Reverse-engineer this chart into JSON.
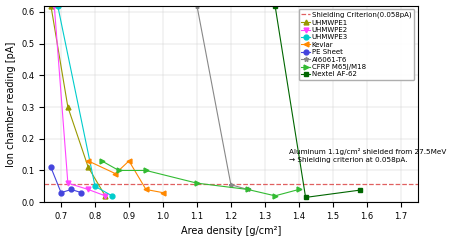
{
  "xlabel": "Area density [g/cm²]",
  "ylabel": "Ion chamber reading [pA]",
  "xlim": [
    0.65,
    1.75
  ],
  "ylim": [
    0.0,
    0.62
  ],
  "xticks": [
    0.7,
    0.8,
    0.9,
    1.0,
    1.1,
    1.2,
    1.3,
    1.4,
    1.5,
    1.6,
    1.7
  ],
  "yticks": [
    0.0,
    0.1,
    0.2,
    0.3,
    0.4,
    0.5,
    0.6
  ],
  "shielding_criterion": 0.058,
  "annotation_text": "Aluminum 1.1g/cm² shielded from 27.5MeV\n→ Shielding criterion at 0.058pA.",
  "series": [
    {
      "name": "Shielding Criterion(0.058pA)",
      "color": "#e06060",
      "linestyle": "--",
      "marker": null,
      "x": [
        0.65,
        1.75
      ],
      "y": [
        0.058,
        0.058
      ]
    },
    {
      "name": "UHMWPE1",
      "color": "#999900",
      "linestyle": "-",
      "marker": "^",
      "x": [
        0.67,
        0.72,
        0.78,
        0.83
      ],
      "y": [
        0.62,
        0.3,
        0.11,
        0.02
      ]
    },
    {
      "name": "UHMWPE2",
      "color": "#ff44ff",
      "linestyle": "-",
      "marker": "v",
      "x": [
        0.68,
        0.72,
        0.78,
        0.83
      ],
      "y": [
        0.62,
        0.06,
        0.04,
        0.02
      ]
    },
    {
      "name": "UHMWPE3",
      "color": "#00cccc",
      "linestyle": "-",
      "marker": "o",
      "x": [
        0.69,
        0.8,
        0.85
      ],
      "y": [
        0.62,
        0.05,
        0.02
      ]
    },
    {
      "name": "Kevlar",
      "color": "#ff8800",
      "linestyle": "-",
      "marker": "<",
      "x": [
        0.78,
        0.86,
        0.9,
        0.95,
        1.0
      ],
      "y": [
        0.13,
        0.09,
        0.13,
        0.04,
        0.03
      ]
    },
    {
      "name": "PE Sheet",
      "color": "#4444dd",
      "linestyle": "-",
      "marker": "o",
      "x": [
        0.67,
        0.7,
        0.73,
        0.76
      ],
      "y": [
        0.11,
        0.03,
        0.04,
        0.03
      ]
    },
    {
      "name": "Al6061-T6",
      "color": "#888888",
      "linestyle": "-",
      "marker": "*",
      "x": [
        1.1,
        1.2,
        1.25
      ],
      "y": [
        0.62,
        0.055,
        0.04
      ]
    },
    {
      "name": "CFRP M65J/M18",
      "color": "#33bb33",
      "linestyle": "-",
      "marker": ">",
      "x": [
        0.82,
        0.87,
        0.95,
        1.1,
        1.25,
        1.33,
        1.4
      ],
      "y": [
        0.13,
        0.1,
        0.1,
        0.06,
        0.04,
        0.02,
        0.04
      ]
    },
    {
      "name": "Nextel AF-62",
      "color": "#006600",
      "linestyle": "-",
      "marker": "s",
      "x": [
        1.33,
        1.42,
        1.58
      ],
      "y": [
        0.62,
        0.015,
        0.038
      ]
    }
  ]
}
